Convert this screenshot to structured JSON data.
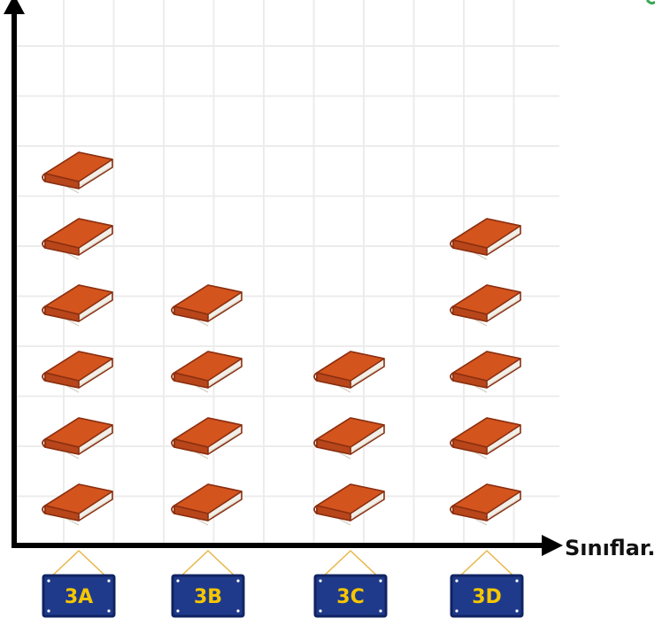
{
  "chart_data": {
    "type": "bar",
    "title": "",
    "xlabel": "Sınıflar.",
    "ylabel": "",
    "categories": [
      "3A",
      "3B",
      "3C",
      "3D"
    ],
    "values": [
      6,
      4,
      3,
      5
    ],
    "ylim": [
      0,
      8
    ],
    "grid": true,
    "legend": "none",
    "marker_icon": "book-icon"
  },
  "colors": {
    "axis": "#000000",
    "grid": "#ececec",
    "book_cover": "#d4541d",
    "book_dark": "#9c3714",
    "book_pages": "#f2efe8",
    "sign_fill": "#1f3a8a",
    "sign_border": "#102463",
    "sign_text": "#f7c600",
    "string": "#e8b84a"
  }
}
